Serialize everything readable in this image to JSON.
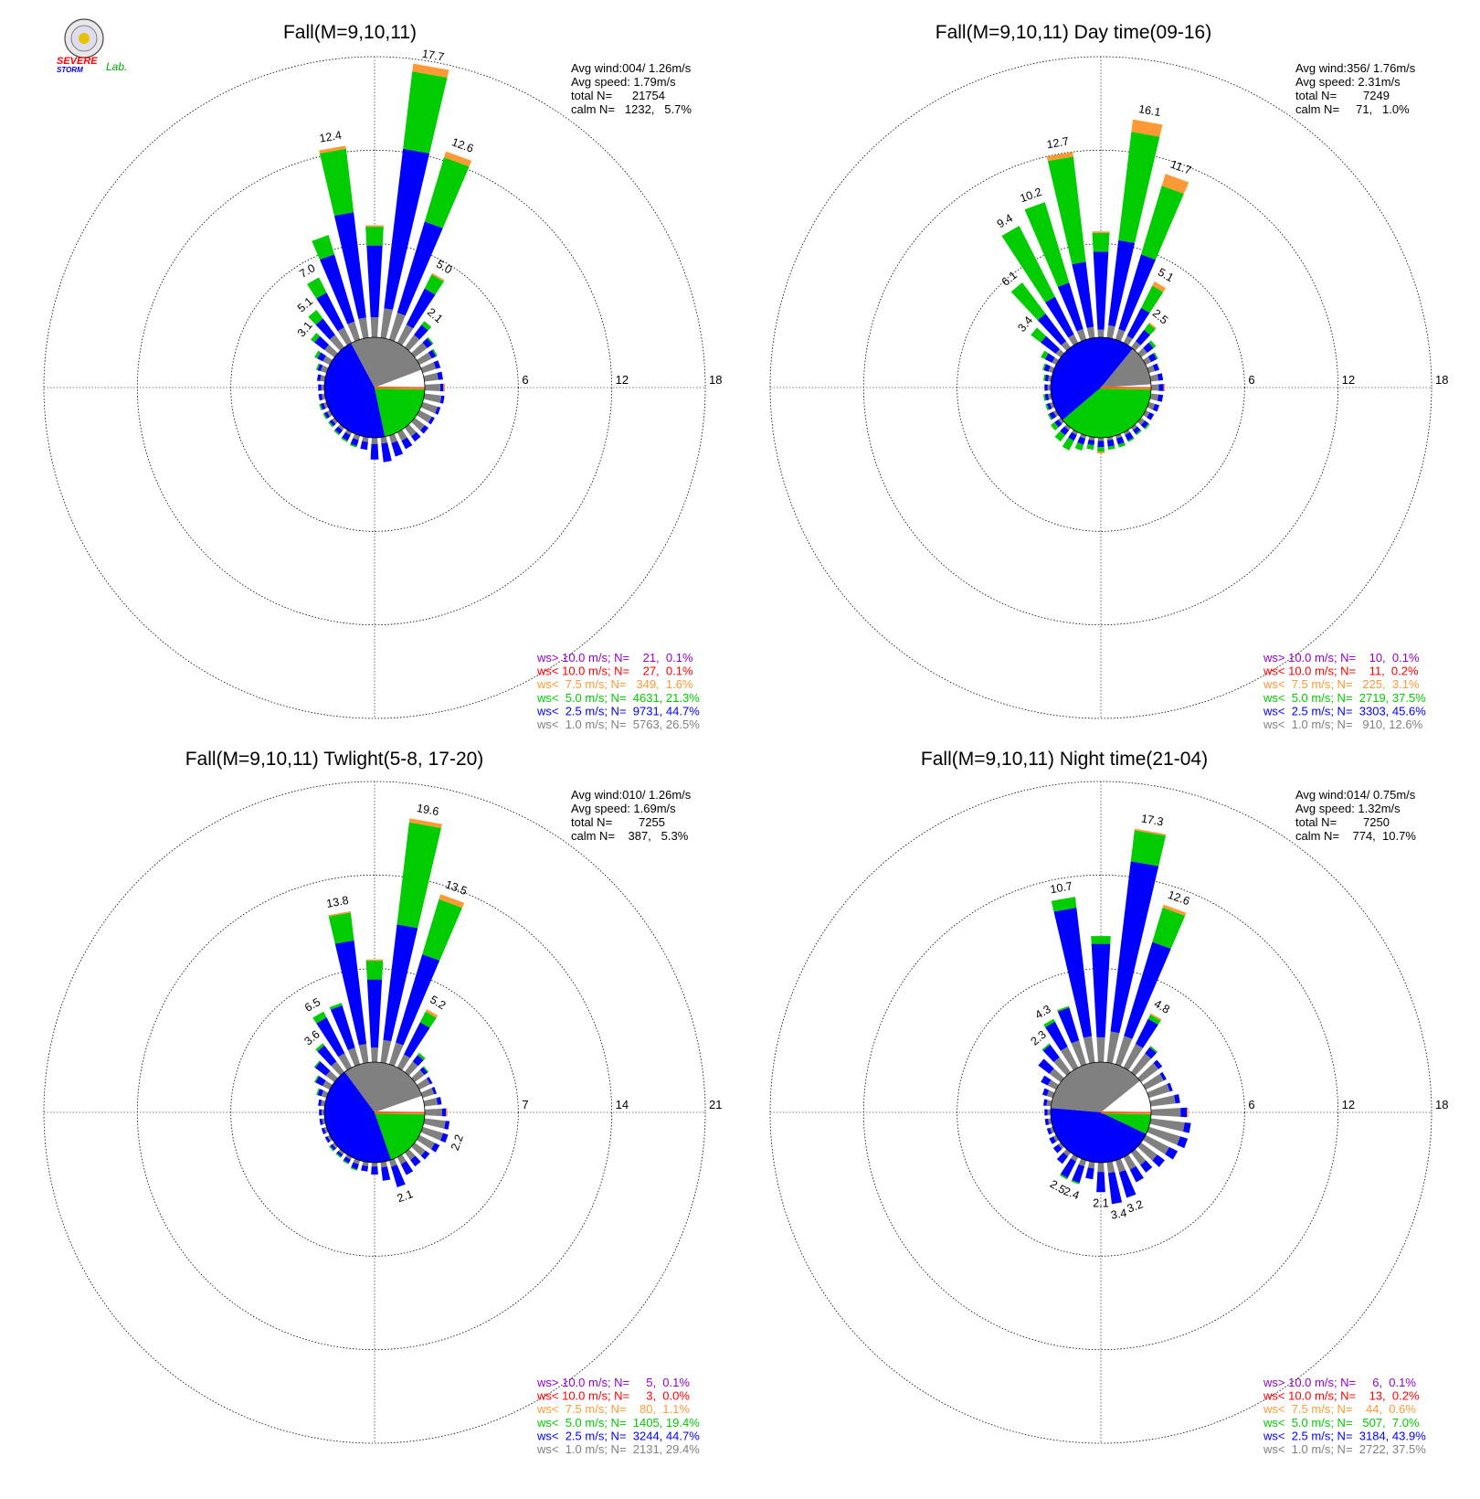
{
  "logo": {
    "top": "SEVERE",
    "bottom": "STORM",
    "lab": "Lab."
  },
  "colors": {
    "gt10": "#9400d3",
    "lt10": "#ff0000",
    "lt75": "#ff9933",
    "lt5": "#00cc00",
    "lt25": "#0000ff",
    "lt1": "#808080"
  },
  "chart_data": [
    {
      "type": "windrose",
      "title": "Fall(M=9,10,11)",
      "avg_wind": "Avg wind:004/ 1.26m/s",
      "avg_speed": "Avg speed: 1.79m/s",
      "total": "total N=      21754",
      "calm": "calm N=   1232,   5.7%",
      "ticks": [
        "6",
        "12",
        "18"
      ],
      "rmax": 18,
      "max_spoke": 17.7,
      "pie": [
        5.7,
        26.5,
        44.7,
        21.3
      ],
      "sector_labels": [
        {
          "deg": 350,
          "text": "12.4"
        },
        {
          "deg": 10,
          "text": "17.7"
        },
        {
          "deg": 20,
          "text": "12.6"
        },
        {
          "deg": 30,
          "text": "5.0"
        },
        {
          "deg": 40,
          "text": "2.1"
        },
        {
          "deg": 330,
          "text": "7.0"
        },
        {
          "deg": 320,
          "text": "5.1"
        },
        {
          "deg": 310,
          "text": "3.1"
        }
      ],
      "legend": [
        {
          "color": "gt10",
          "text": "ws> 10.0 m/s; N=    21,  0.1%"
        },
        {
          "color": "lt10",
          "text": "ws< 10.0 m/s; N=    27,  0.1%"
        },
        {
          "color": "lt75",
          "text": "ws<  7.5 m/s; N=   349,  1.6%"
        },
        {
          "color": "lt5",
          "text": "ws<  5.0 m/s; N=  4631, 21.3%"
        },
        {
          "color": "lt25",
          "text": "ws<  2.5 m/s; N=  9731, 44.7%"
        },
        {
          "color": "lt1",
          "text": "ws<  1.0 m/s; N=  5763, 26.5%"
        }
      ]
    },
    {
      "type": "windrose",
      "title": "Fall(M=9,10,11) Day time(09-16)",
      "avg_wind": "Avg wind:356/ 1.76m/s",
      "avg_speed": "Avg speed: 2.31m/s",
      "total": "total N=        7249",
      "calm": "calm N=     71,   1.0%",
      "ticks": [
        "6",
        "12",
        "18"
      ],
      "rmax": 18,
      "max_spoke": 16.1,
      "pie": [
        1.0,
        12.6,
        45.6,
        37.5
      ],
      "sector_labels": [
        {
          "deg": 350,
          "text": "12.7"
        },
        {
          "deg": 10,
          "text": "16.1"
        },
        {
          "deg": 20,
          "text": "11.7"
        },
        {
          "deg": 30,
          "text": "5.1"
        },
        {
          "deg": 40,
          "text": "2.5"
        },
        {
          "deg": 340,
          "text": "10.2"
        },
        {
          "deg": 330,
          "text": "9.4"
        },
        {
          "deg": 320,
          "text": "6.1"
        },
        {
          "deg": 310,
          "text": "3.4"
        }
      ],
      "legend": [
        {
          "color": "gt10",
          "text": "ws> 10.0 m/s; N=    10,  0.1%"
        },
        {
          "color": "lt10",
          "text": "ws< 10.0 m/s; N=    11,  0.2%"
        },
        {
          "color": "lt75",
          "text": "ws<  7.5 m/s; N=   225,  3.1%"
        },
        {
          "color": "lt5",
          "text": "ws<  5.0 m/s; N=  2719, 37.5%"
        },
        {
          "color": "lt25",
          "text": "ws<  2.5 m/s; N=  3303, 45.6%"
        },
        {
          "color": "lt1",
          "text": "ws<  1.0 m/s; N=   910, 12.6%"
        }
      ]
    },
    {
      "type": "windrose",
      "title": "Fall(M=9,10,11) Twlight(5-8, 17-20)",
      "avg_wind": "Avg wind:010/ 1.26m/s",
      "avg_speed": "Avg speed: 1.69m/s",
      "total": "total N=        7255",
      "calm": "calm N=    387,   5.3%",
      "ticks": [
        "7",
        "14",
        "21"
      ],
      "rmax": 21,
      "max_spoke": 19.6,
      "pie": [
        5.3,
        29.4,
        44.7,
        19.4
      ],
      "sector_labels": [
        {
          "deg": 350,
          "text": "13.8"
        },
        {
          "deg": 10,
          "text": "19.6"
        },
        {
          "deg": 20,
          "text": "13.5"
        },
        {
          "deg": 30,
          "text": "5.2"
        },
        {
          "deg": 330,
          "text": "6.5"
        },
        {
          "deg": 320,
          "text": "3.6"
        },
        {
          "deg": 110,
          "text": "2.2"
        },
        {
          "deg": 160,
          "text": "2.1"
        }
      ],
      "legend": [
        {
          "color": "gt10",
          "text": "ws> 10.0 m/s; N=     5,  0.1%"
        },
        {
          "color": "lt10",
          "text": "ws< 10.0 m/s; N=     3,  0.0%"
        },
        {
          "color": "lt75",
          "text": "ws<  7.5 m/s; N=    80,  1.1%"
        },
        {
          "color": "lt5",
          "text": "ws<  5.0 m/s; N=  1405, 19.4%"
        },
        {
          "color": "lt25",
          "text": "ws<  2.5 m/s; N=  3244, 44.7%"
        },
        {
          "color": "lt1",
          "text": "ws<  1.0 m/s; N=  2131, 29.4%"
        }
      ]
    },
    {
      "type": "windrose",
      "title": "Fall(M=9,10,11) Night time(21-04)",
      "avg_wind": "Avg wind:014/ 0.75m/s",
      "avg_speed": "Avg speed: 1.32m/s",
      "total": "total N=        7250",
      "calm": "calm N=    774,  10.7%",
      "ticks": [
        "6",
        "12",
        "18"
      ],
      "rmax": 18,
      "max_spoke": 17.3,
      "pie": [
        10.7,
        37.5,
        43.9,
        7.0
      ],
      "sector_labels": [
        {
          "deg": 350,
          "text": "10.7"
        },
        {
          "deg": 10,
          "text": "17.3"
        },
        {
          "deg": 20,
          "text": "12.6"
        },
        {
          "deg": 30,
          "text": "4.8"
        },
        {
          "deg": 330,
          "text": "4.3"
        },
        {
          "deg": 320,
          "text": "2.3"
        },
        {
          "deg": 160,
          "text": "3.2"
        },
        {
          "deg": 170,
          "text": "3.4"
        },
        {
          "deg": 180,
          "text": "2.1"
        },
        {
          "deg": 200,
          "text": "2.4"
        },
        {
          "deg": 210,
          "text": "2.5"
        }
      ],
      "legend": [
        {
          "color": "gt10",
          "text": "ws> 10.0 m/s; N=     6,  0.1%"
        },
        {
          "color": "lt10",
          "text": "ws< 10.0 m/s; N=    13,  0.2%"
        },
        {
          "color": "lt75",
          "text": "ws<  7.5 m/s; N=    44,  0.6%"
        },
        {
          "color": "lt5",
          "text": "ws<  5.0 m/s; N=   507,  7.0%"
        },
        {
          "color": "lt25",
          "text": "ws<  2.5 m/s; N=  3184, 43.9%"
        },
        {
          "color": "lt1",
          "text": "ws<  1.0 m/s; N=  2722, 37.5%"
        }
      ]
    }
  ]
}
